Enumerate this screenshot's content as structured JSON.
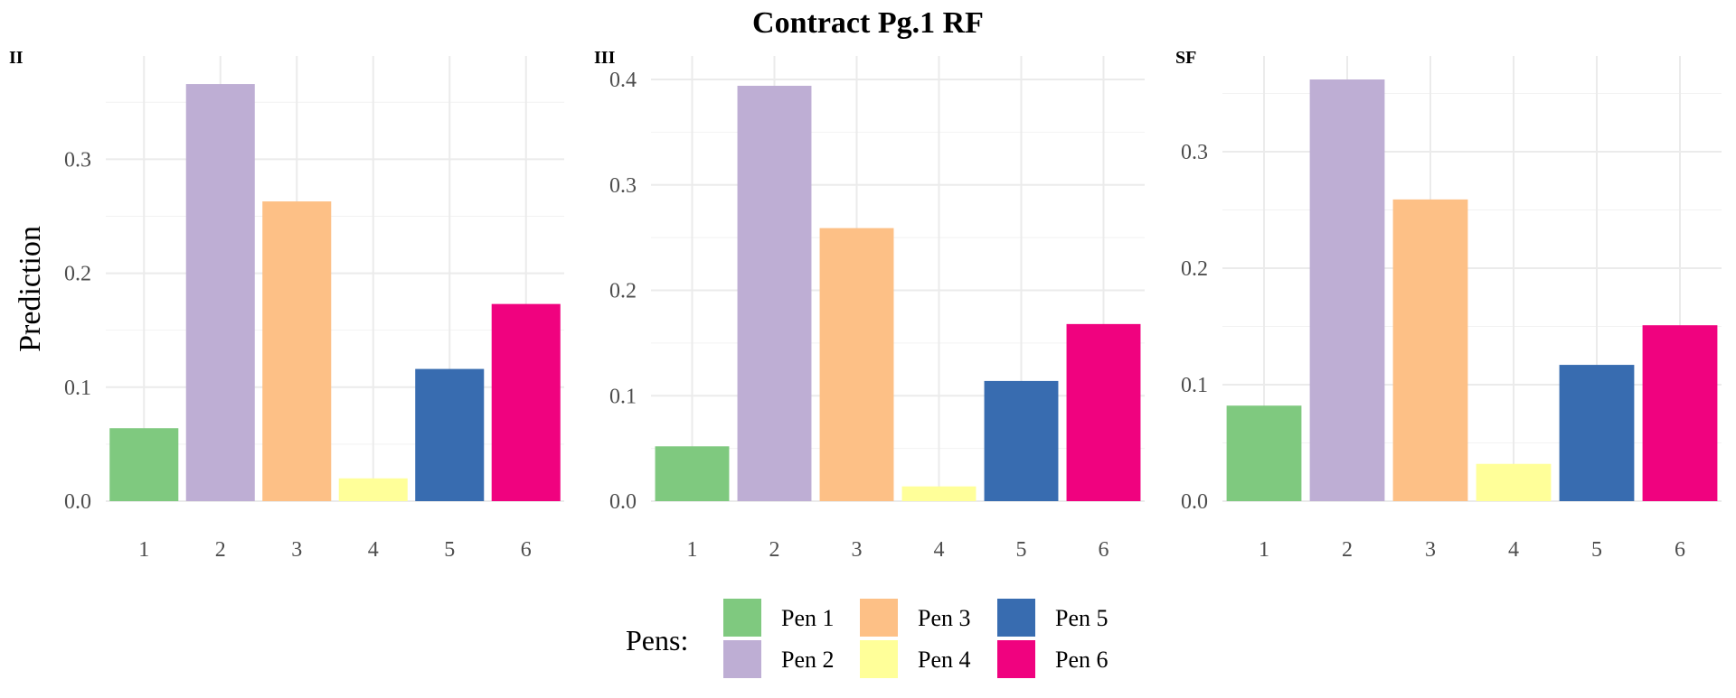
{
  "chart_data": {
    "type": "bar",
    "title": "Contract Pg.1 RF",
    "ylabel": "Prediction",
    "xlabel": "",
    "categories": [
      "1",
      "2",
      "3",
      "4",
      "5",
      "6"
    ],
    "legend": {
      "title": "Pens:",
      "placement": "bottom",
      "items": [
        "Pen 1",
        "Pen 2",
        "Pen 3",
        "Pen 4",
        "Pen 5",
        "Pen 6"
      ]
    },
    "colors": [
      "#7fc97f",
      "#beaed4",
      "#fdc086",
      "#ffff99",
      "#386cb0",
      "#f0027f"
    ],
    "grid": true,
    "panels": [
      {
        "label": "II",
        "values": [
          0.064,
          0.366,
          0.263,
          0.02,
          0.116,
          0.173
        ],
        "ylim": [
          0,
          0.37
        ],
        "yticks": [
          0.0,
          0.1,
          0.2,
          0.3
        ],
        "ytick_labels": [
          "0.0",
          "0.1",
          "0.2",
          "0.3"
        ]
      },
      {
        "label": "III",
        "values": [
          0.052,
          0.394,
          0.259,
          0.014,
          0.114,
          0.168
        ],
        "ylim": [
          0,
          0.4
        ],
        "yticks": [
          0.0,
          0.1,
          0.2,
          0.3,
          0.4
        ],
        "ytick_labels": [
          "0.0",
          "0.1",
          "0.2",
          "0.3",
          "0.4"
        ]
      },
      {
        "label": "SF",
        "values": [
          0.082,
          0.362,
          0.259,
          0.032,
          0.117,
          0.151
        ],
        "ylim": [
          0,
          0.362
        ],
        "yticks": [
          0.0,
          0.1,
          0.2,
          0.3
        ],
        "ytick_labels": [
          "0.0",
          "0.1",
          "0.2",
          "0.3"
        ]
      }
    ]
  }
}
